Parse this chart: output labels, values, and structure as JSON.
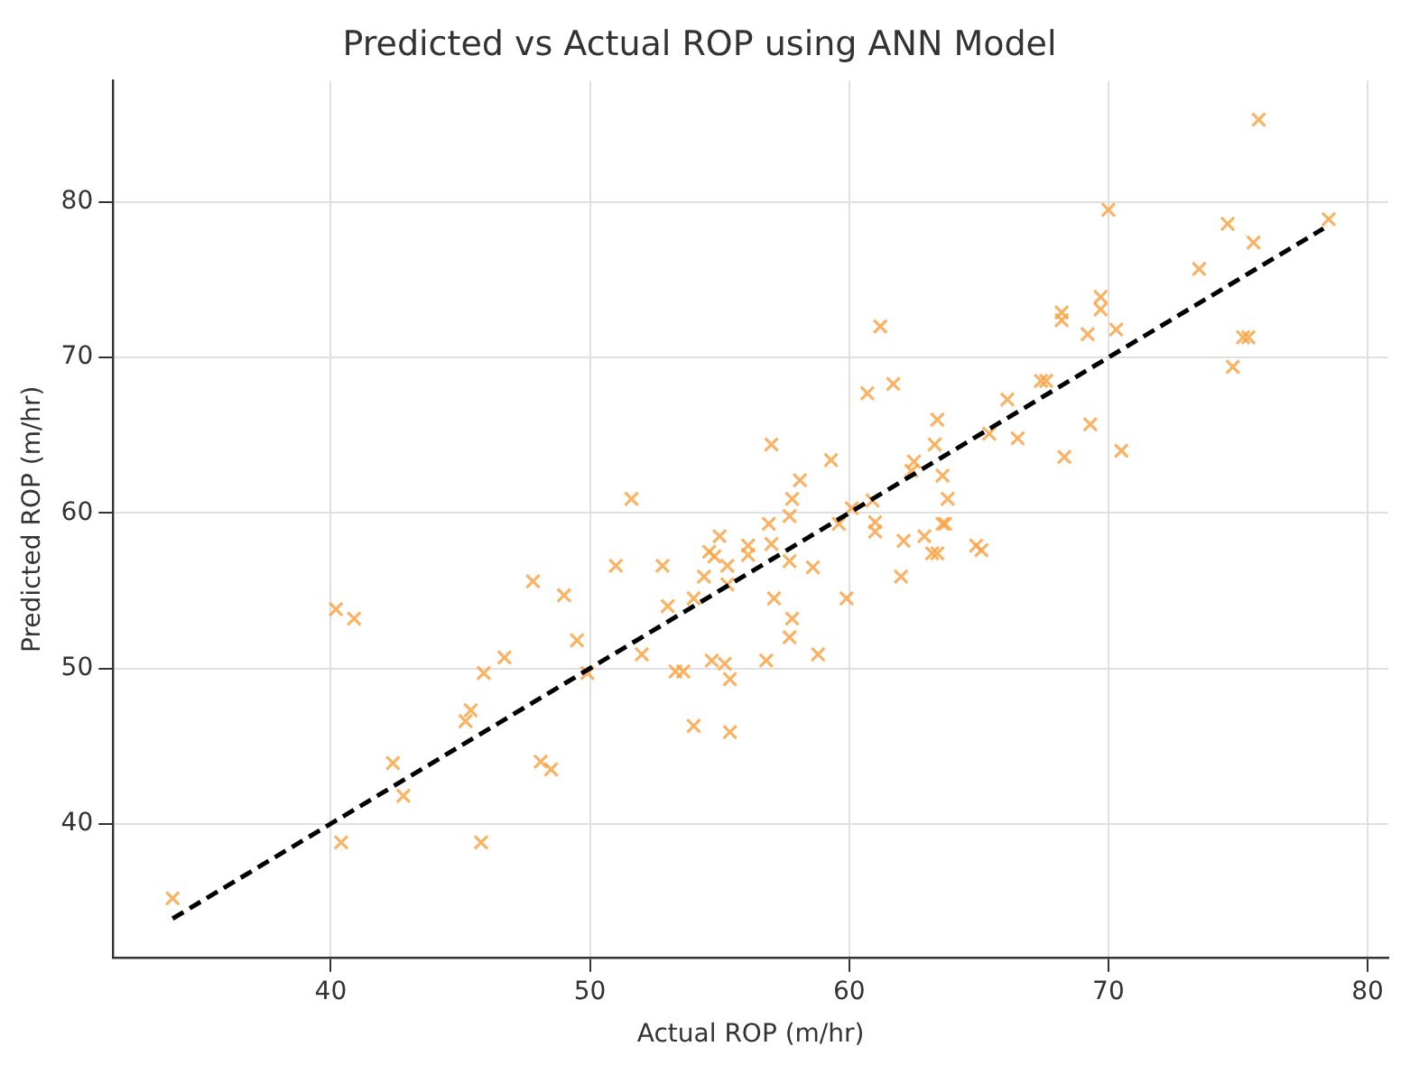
{
  "chart_data": {
    "type": "scatter",
    "title": "Predicted vs Actual ROP using ANN Model",
    "xlabel": "Actual ROP (m/hr)",
    "ylabel": "Predicted ROP (m/hr)",
    "xlim": [
      31.6,
      80.8
    ],
    "ylim": [
      31.4,
      87.8
    ],
    "xticks": [
      40,
      50,
      60,
      70,
      80
    ],
    "yticks": [
      40,
      50,
      60,
      70,
      80
    ],
    "grid": true,
    "legend": false,
    "series": [
      {
        "color": "#f9a03f",
        "marker": "cross",
        "x": [
          33.9,
          40.2,
          40.9,
          40.4,
          42.4,
          42.8,
          45.2,
          45.4,
          45.9,
          45.8,
          46.7,
          47.8,
          48.1,
          48.5,
          49.0,
          49.5,
          49.9,
          51.0,
          51.6,
          52.0,
          52.8,
          53.0,
          53.3,
          53.6,
          54.0,
          54.0,
          54.4,
          54.6,
          55.0,
          54.8,
          54.7,
          55.2,
          55.4,
          55.4,
          55.3,
          55.3,
          56.1,
          56.1,
          56.8,
          57.0,
          56.9,
          57.0,
          57.1,
          57.7,
          57.7,
          57.8,
          57.8,
          57.7,
          58.1,
          58.6,
          58.8,
          59.3,
          59.6,
          59.9,
          60.1,
          60.7,
          60.9,
          61.0,
          61.0,
          61.2,
          61.7,
          62.0,
          62.1,
          62.5,
          62.4,
          62.9,
          63.2,
          63.4,
          63.3,
          63.4,
          63.6,
          63.7,
          63.6,
          63.8,
          64.9,
          65.1,
          65.4,
          66.1,
          66.5,
          67.4,
          67.6,
          68.2,
          68.2,
          68.3,
          69.2,
          69.3,
          69.7,
          69.7,
          70.0,
          70.3,
          70.5,
          73.5,
          74.6,
          74.8,
          75.2,
          75.4,
          75.6,
          75.8,
          78.5
        ],
        "values": [
          35.2,
          53.8,
          53.2,
          38.8,
          43.9,
          41.8,
          46.6,
          47.3,
          49.7,
          38.8,
          50.7,
          55.6,
          44.0,
          43.5,
          54.7,
          51.8,
          49.7,
          56.6,
          60.9,
          50.9,
          56.6,
          54.0,
          49.8,
          49.8,
          46.3,
          54.5,
          55.9,
          57.5,
          58.5,
          57.2,
          50.5,
          50.3,
          49.3,
          45.9,
          56.6,
          55.4,
          57.3,
          57.9,
          50.5,
          64.4,
          59.3,
          58.0,
          54.5,
          56.9,
          59.8,
          60.9,
          53.2,
          52.0,
          62.1,
          56.5,
          50.9,
          63.4,
          59.3,
          54.5,
          60.3,
          67.7,
          60.8,
          59.4,
          58.8,
          72.0,
          68.3,
          55.9,
          58.2,
          63.3,
          62.7,
          58.5,
          57.4,
          57.4,
          64.4,
          66.0,
          59.3,
          59.3,
          62.4,
          60.9,
          57.9,
          57.6,
          65.1,
          67.3,
          64.8,
          68.5,
          68.5,
          72.9,
          72.4,
          63.6,
          71.5,
          65.7,
          73.9,
          73.1,
          79.5,
          71.8,
          64.0,
          75.7,
          78.6,
          69.4,
          71.3,
          71.3,
          77.4,
          85.3,
          78.9
        ]
      },
      {
        "type": "line",
        "color": "#000000",
        "line_style": "dashed",
        "marker": "none",
        "x": [
          33.9,
          78.3
        ],
        "values": [
          33.9,
          78.3
        ]
      }
    ]
  }
}
